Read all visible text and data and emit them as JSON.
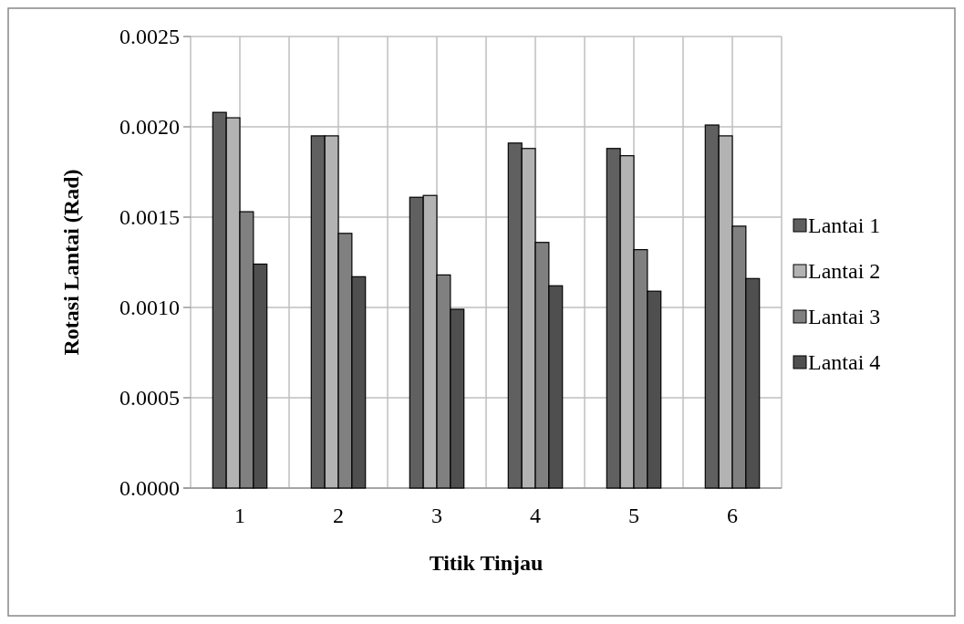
{
  "chart_data": {
    "type": "bar",
    "xlabel": "Titik Tinjau",
    "ylabel": "Rotasi Lantai (Rad)",
    "categories": [
      "1",
      "2",
      "3",
      "4",
      "5",
      "6"
    ],
    "series": [
      {
        "name": "Lantai 1",
        "color": "#606060",
        "values": [
          0.00208,
          0.00195,
          0.00161,
          0.00191,
          0.00188,
          0.00201
        ]
      },
      {
        "name": "Lantai 2",
        "color": "#b3b3b3",
        "values": [
          0.00205,
          0.00195,
          0.00162,
          0.00188,
          0.00184,
          0.00195
        ]
      },
      {
        "name": "Lantai 3",
        "color": "#808080",
        "values": [
          0.00153,
          0.00141,
          0.00118,
          0.00136,
          0.00132,
          0.00145
        ]
      },
      {
        "name": "Lantai 4",
        "color": "#4f4f4f",
        "values": [
          0.00124,
          0.00117,
          0.00099,
          0.00112,
          0.00109,
          0.00116
        ]
      }
    ],
    "ylim": [
      0,
      0.0025
    ],
    "yticks": [
      {
        "value": 0,
        "label": "0.0000"
      },
      {
        "value": 0.0005,
        "label": "0.0005"
      },
      {
        "value": 0.001,
        "label": "0.0010"
      },
      {
        "value": 0.0015,
        "label": "0.0015"
      },
      {
        "value": 0.002,
        "label": "0.0020"
      },
      {
        "value": 0.0025,
        "label": "0.0025"
      }
    ],
    "grid": true,
    "legend": "right"
  }
}
